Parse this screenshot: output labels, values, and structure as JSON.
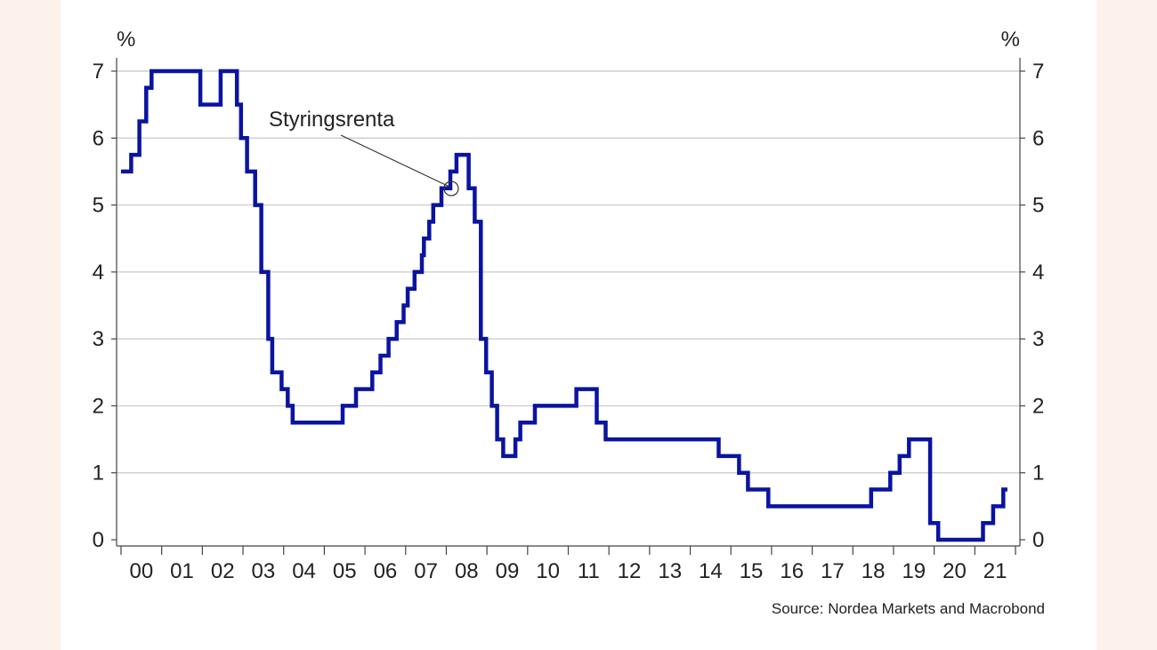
{
  "chart_data": {
    "type": "line",
    "unit_left": "%",
    "unit_right": "%",
    "annotation": "Styringsrenta",
    "source": "Source: Nordea Markets and Macrobond",
    "ylim": [
      0,
      7
    ],
    "y_ticks": [
      "0",
      "1",
      "2",
      "3",
      "4",
      "5",
      "6",
      "7"
    ],
    "x_start": 2000.0,
    "x_end": 2022.0,
    "x_tick_labels": [
      "00",
      "01",
      "02",
      "03",
      "04",
      "05",
      "06",
      "07",
      "08",
      "09",
      "10",
      "11",
      "12",
      "13",
      "14",
      "15",
      "16",
      "17",
      "18",
      "19",
      "20",
      "21"
    ],
    "grid": true,
    "series": [
      {
        "color": "#0a14a0",
        "steps": [
          [
            2000.0,
            5.5
          ],
          [
            2000.25,
            5.75
          ],
          [
            2000.45,
            6.25
          ],
          [
            2000.62,
            6.75
          ],
          [
            2000.75,
            7.0
          ],
          [
            2001.95,
            6.5
          ],
          [
            2002.45,
            7.0
          ],
          [
            2002.85,
            6.5
          ],
          [
            2002.95,
            6.0
          ],
          [
            2003.1,
            5.5
          ],
          [
            2003.3,
            5.0
          ],
          [
            2003.45,
            4.0
          ],
          [
            2003.62,
            3.0
          ],
          [
            2003.72,
            2.5
          ],
          [
            2003.95,
            2.25
          ],
          [
            2004.1,
            2.0
          ],
          [
            2004.22,
            1.75
          ],
          [
            2005.45,
            2.0
          ],
          [
            2005.78,
            2.25
          ],
          [
            2006.18,
            2.5
          ],
          [
            2006.38,
            2.75
          ],
          [
            2006.58,
            3.0
          ],
          [
            2006.78,
            3.25
          ],
          [
            2006.95,
            3.5
          ],
          [
            2007.05,
            3.75
          ],
          [
            2007.22,
            4.0
          ],
          [
            2007.4,
            4.25
          ],
          [
            2007.45,
            4.5
          ],
          [
            2007.58,
            4.75
          ],
          [
            2007.68,
            5.0
          ],
          [
            2007.88,
            5.25
          ],
          [
            2008.1,
            5.5
          ],
          [
            2008.25,
            5.75
          ],
          [
            2008.55,
            5.25
          ],
          [
            2008.7,
            4.75
          ],
          [
            2008.85,
            3.0
          ],
          [
            2008.98,
            2.5
          ],
          [
            2009.12,
            2.0
          ],
          [
            2009.25,
            1.5
          ],
          [
            2009.4,
            1.25
          ],
          [
            2009.7,
            1.5
          ],
          [
            2009.82,
            1.75
          ],
          [
            2010.18,
            2.0
          ],
          [
            2011.2,
            2.25
          ],
          [
            2011.7,
            1.75
          ],
          [
            2011.92,
            1.5
          ],
          [
            2014.7,
            1.25
          ],
          [
            2015.2,
            1.0
          ],
          [
            2015.42,
            0.75
          ],
          [
            2015.92,
            0.5
          ],
          [
            2018.45,
            0.75
          ],
          [
            2018.92,
            1.0
          ],
          [
            2019.15,
            1.25
          ],
          [
            2019.38,
            1.5
          ],
          [
            2019.9,
            0.25
          ],
          [
            2020.1,
            0.0
          ],
          [
            2021.2,
            0.25
          ],
          [
            2021.45,
            0.5
          ],
          [
            2021.7,
            0.75
          ],
          [
            2021.8,
            0.75
          ]
        ]
      }
    ]
  }
}
